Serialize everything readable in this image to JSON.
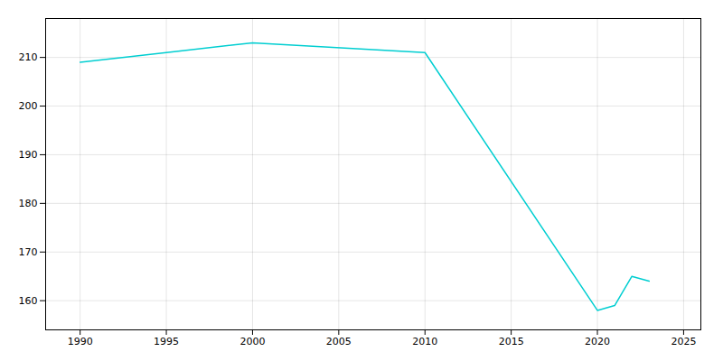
{
  "chart_data": {
    "type": "line",
    "x": [
      1990,
      1995,
      2000,
      2010,
      2020,
      2021,
      2022,
      2023
    ],
    "values": [
      209,
      211,
      213,
      211,
      158,
      159,
      165,
      164
    ],
    "color": "#00CED1",
    "xlim": [
      1988,
      2026
    ],
    "ylim": [
      154,
      218
    ],
    "xticks": [
      1990,
      1995,
      2000,
      2005,
      2010,
      2015,
      2020,
      2025
    ],
    "yticks": [
      160,
      170,
      180,
      190,
      200,
      210
    ],
    "grid": true
  }
}
